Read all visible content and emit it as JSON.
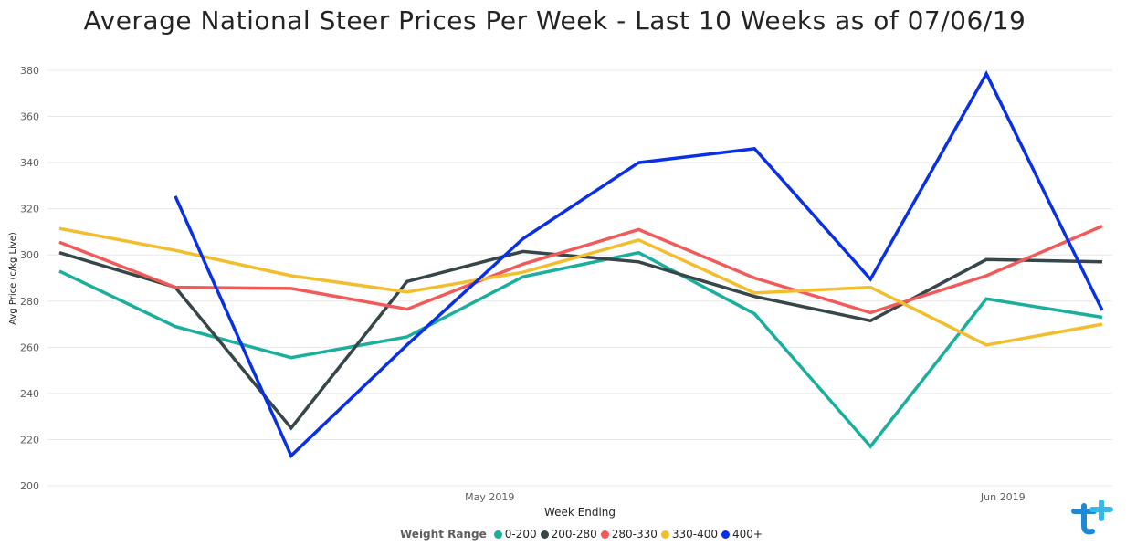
{
  "chart_data": {
    "type": "line",
    "title": "Average National Steer Prices Per Week - Last 10 Weeks as of 07/06/19",
    "xlabel": "Week Ending",
    "ylabel": "Avg Price (c/kg Live)",
    "ylim": [
      200,
      380
    ],
    "yticks": [
      200,
      220,
      240,
      260,
      280,
      300,
      320,
      340,
      360,
      380
    ],
    "x": [
      "2019-04-05",
      "2019-04-12",
      "2019-04-19",
      "2019-04-26",
      "2019-05-03",
      "2019-05-10",
      "2019-05-17",
      "2019-05-24",
      "2019-05-31",
      "2019-06-07"
    ],
    "x_tick_labels": [
      {
        "label": "May 2019",
        "date": "2019-05-01"
      },
      {
        "label": "Jun 2019",
        "date": "2019-06-01"
      }
    ],
    "grid": true,
    "legend_title": "Weight Range",
    "legend_position": "bottom",
    "series": [
      {
        "name": "0-200",
        "color": "#1aaf9c",
        "values": [
          293,
          269,
          255.5,
          264.5,
          290.5,
          301,
          274.5,
          217,
          281,
          273
        ]
      },
      {
        "name": "200-280",
        "color": "#374649",
        "values": [
          301,
          286,
          225,
          288.5,
          301.5,
          297,
          282,
          271.5,
          298,
          297
        ]
      },
      {
        "name": "280-330",
        "color": "#f25a5a",
        "values": [
          305.5,
          286,
          285.5,
          276.5,
          296,
          311,
          290,
          275,
          291,
          312.5
        ]
      },
      {
        "name": "330-400",
        "color": "#f2be2e",
        "values": [
          311.5,
          302,
          291,
          284,
          292.5,
          306.5,
          283.5,
          286,
          261,
          270
        ]
      },
      {
        "name": "400+",
        "color": "#0a30e6",
        "values": [
          null,
          325.5,
          213,
          261,
          307,
          340,
          346,
          289.5,
          378.5,
          276
        ]
      }
    ]
  },
  "logo_icon": "tt-logo-icon"
}
